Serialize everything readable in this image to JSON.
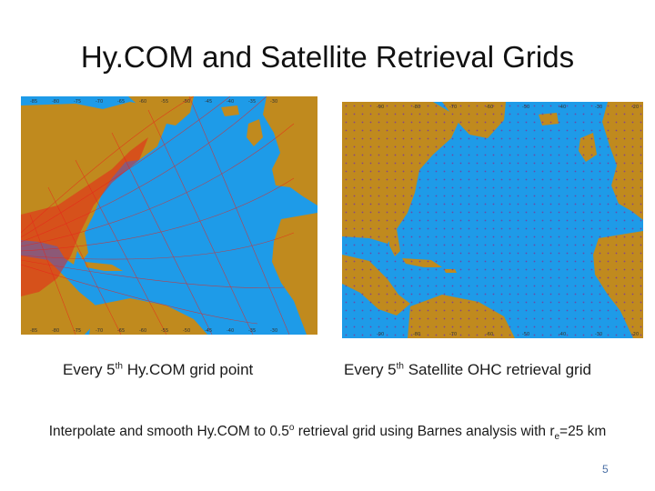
{
  "slide": {
    "title": "Hy.COM and Satellite Retrieval Grids",
    "page_number": "5"
  },
  "left_panel": {
    "caption_prefix": "Every 5",
    "caption_sup": "th",
    "caption_suffix": " Hy.COM grid point",
    "colors": {
      "ocean": "#1e9be8",
      "land": "#c08a1e",
      "grid": "#e8231a"
    }
  },
  "right_panel": {
    "caption_prefix": "Every 5",
    "caption_sup": "th",
    "caption_suffix": " Satellite OHC retrieval grid",
    "colors": {
      "ocean": "#1e9be8",
      "land": "#c08a1e",
      "grid": "#7a3a9a"
    }
  },
  "bottom_text": {
    "part1": "Interpolate and smooth Hy.COM to 0.5",
    "deg": "o",
    "part2": " retrieval grid using Barnes analysis with r",
    "sub": "e",
    "part3": "=25 km"
  }
}
